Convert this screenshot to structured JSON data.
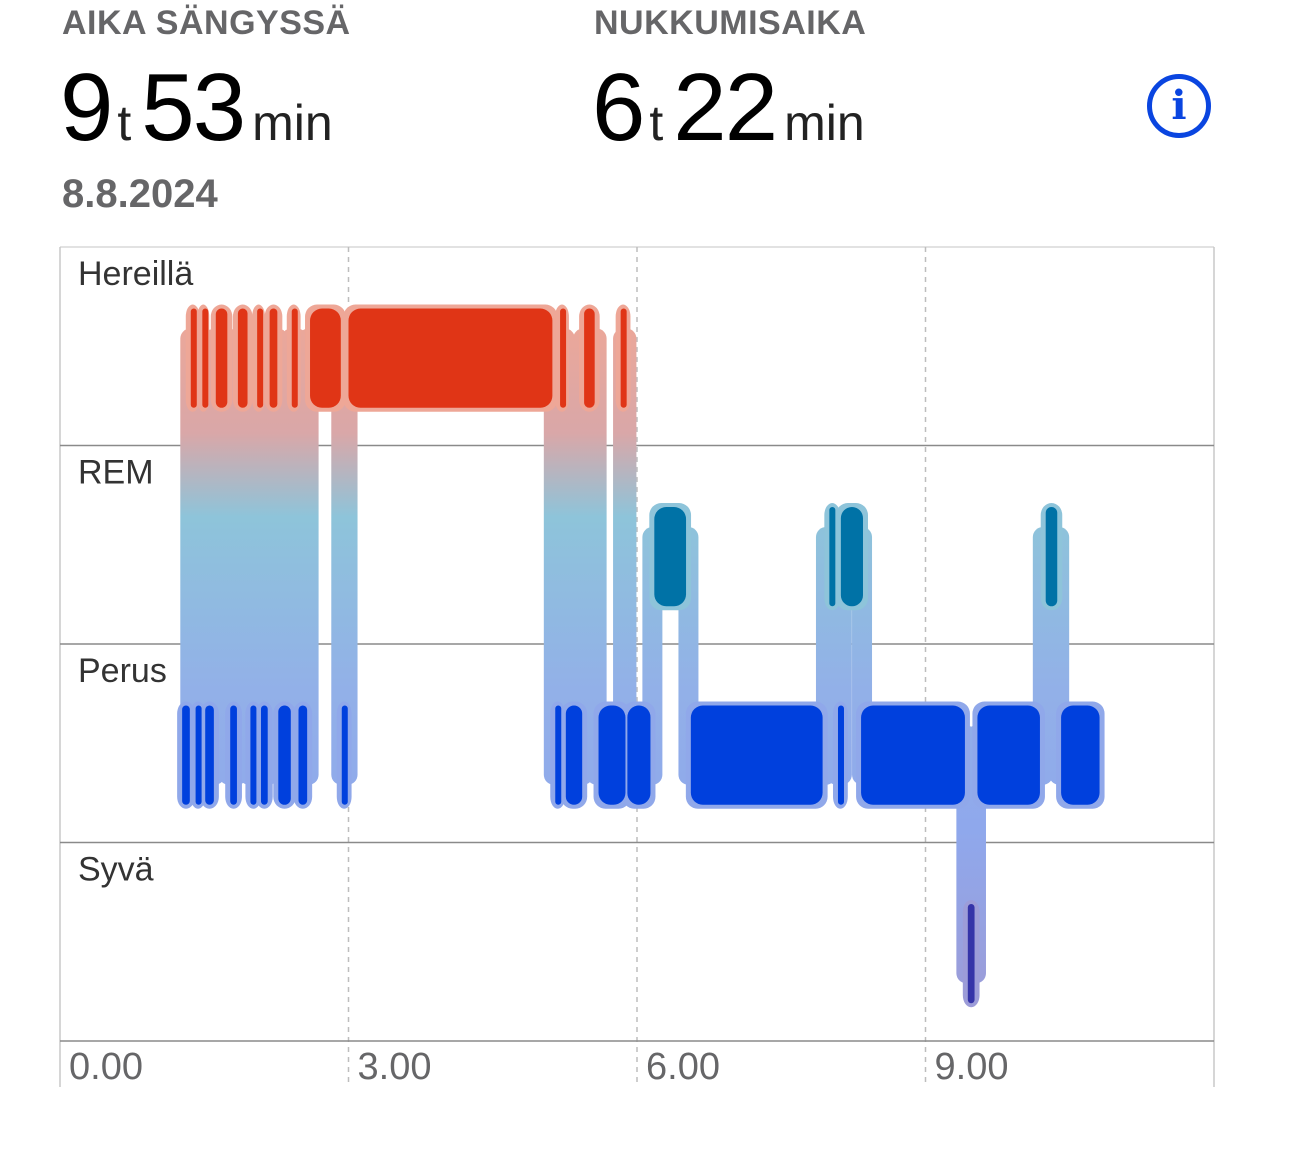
{
  "header": {
    "in_bed": {
      "label": "AIKA SÄNGYSSÄ",
      "hours": "9",
      "hours_unit": "t",
      "minutes": "53",
      "minutes_unit": "min"
    },
    "asleep": {
      "label": "NUKKUMISAIKA",
      "hours": "6",
      "hours_unit": "t",
      "minutes": "22",
      "minutes_unit": "min"
    },
    "date": "8.8.2024",
    "info_icon": "info-circle-icon",
    "info_glyph": "i"
  },
  "chart_data": {
    "type": "sleep-stages",
    "title": "",
    "xlabel": "",
    "ylabel": "",
    "stages": [
      "Hereillä",
      "REM",
      "Perus",
      "Syvä"
    ],
    "x_ticks": [
      {
        "value": 0,
        "label": "0.00"
      },
      {
        "value": 3,
        "label": "3.00"
      },
      {
        "value": 6,
        "label": "6.00"
      },
      {
        "value": 9,
        "label": "9.00"
      }
    ],
    "xlim": [
      0,
      12
    ],
    "grid": true,
    "colors": {
      "Hereillä": "#e03516",
      "REM": "#0072a6",
      "Perus": "#0040dd",
      "Syvä": "#3534a8"
    },
    "segments": [
      {
        "stage": "Perus",
        "start": 1.27,
        "end": 1.35
      },
      {
        "stage": "Hereillä",
        "start": 1.36,
        "end": 1.4
      },
      {
        "stage": "Perus",
        "start": 1.41,
        "end": 1.46
      },
      {
        "stage": "Hereillä",
        "start": 1.48,
        "end": 1.5
      },
      {
        "stage": "Perus",
        "start": 1.51,
        "end": 1.6
      },
      {
        "stage": "Hereillä",
        "start": 1.62,
        "end": 1.74
      },
      {
        "stage": "Perus",
        "start": 1.77,
        "end": 1.84
      },
      {
        "stage": "Hereillä",
        "start": 1.85,
        "end": 1.95
      },
      {
        "stage": "Perus",
        "start": 1.98,
        "end": 2.04
      },
      {
        "stage": "Hereillä",
        "start": 2.05,
        "end": 2.08
      },
      {
        "stage": "Perus",
        "start": 2.09,
        "end": 2.16
      },
      {
        "stage": "Hereillä",
        "start": 2.18,
        "end": 2.26
      },
      {
        "stage": "Perus",
        "start": 2.27,
        "end": 2.4
      },
      {
        "stage": "Hereillä",
        "start": 2.41,
        "end": 2.45
      },
      {
        "stage": "Perus",
        "start": 2.48,
        "end": 2.57
      },
      {
        "stage": "Hereillä",
        "start": 2.6,
        "end": 2.92
      },
      {
        "stage": "Perus",
        "start": 2.93,
        "end": 2.98
      },
      {
        "stage": "Hereillä",
        "start": 3.0,
        "end": 5.12
      },
      {
        "stage": "Perus",
        "start": 5.15,
        "end": 5.2
      },
      {
        "stage": "Hereillä",
        "start": 5.2,
        "end": 5.24
      },
      {
        "stage": "Perus",
        "start": 5.26,
        "end": 5.43
      },
      {
        "stage": "Hereillä",
        "start": 5.45,
        "end": 5.56
      },
      {
        "stage": "Perus",
        "start": 5.6,
        "end": 5.88
      },
      {
        "stage": "Perus",
        "start": 5.9,
        "end": 6.14
      },
      {
        "stage": "Hereillä",
        "start": 5.83,
        "end": 5.88
      },
      {
        "stage": "REM",
        "start": 6.18,
        "end": 6.51
      },
      {
        "stage": "Perus",
        "start": 6.56,
        "end": 7.93
      },
      {
        "stage": "REM",
        "start": 8.0,
        "end": 8.06
      },
      {
        "stage": "Perus",
        "start": 8.09,
        "end": 8.14
      },
      {
        "stage": "REM",
        "start": 8.12,
        "end": 8.35
      },
      {
        "stage": "Perus",
        "start": 8.33,
        "end": 9.41
      },
      {
        "stage": "Syvä",
        "start": 9.44,
        "end": 9.51
      },
      {
        "stage": "Perus",
        "start": 9.54,
        "end": 10.19
      },
      {
        "stage": "REM",
        "start": 10.25,
        "end": 10.37
      },
      {
        "stage": "Perus",
        "start": 10.41,
        "end": 10.81
      }
    ]
  }
}
